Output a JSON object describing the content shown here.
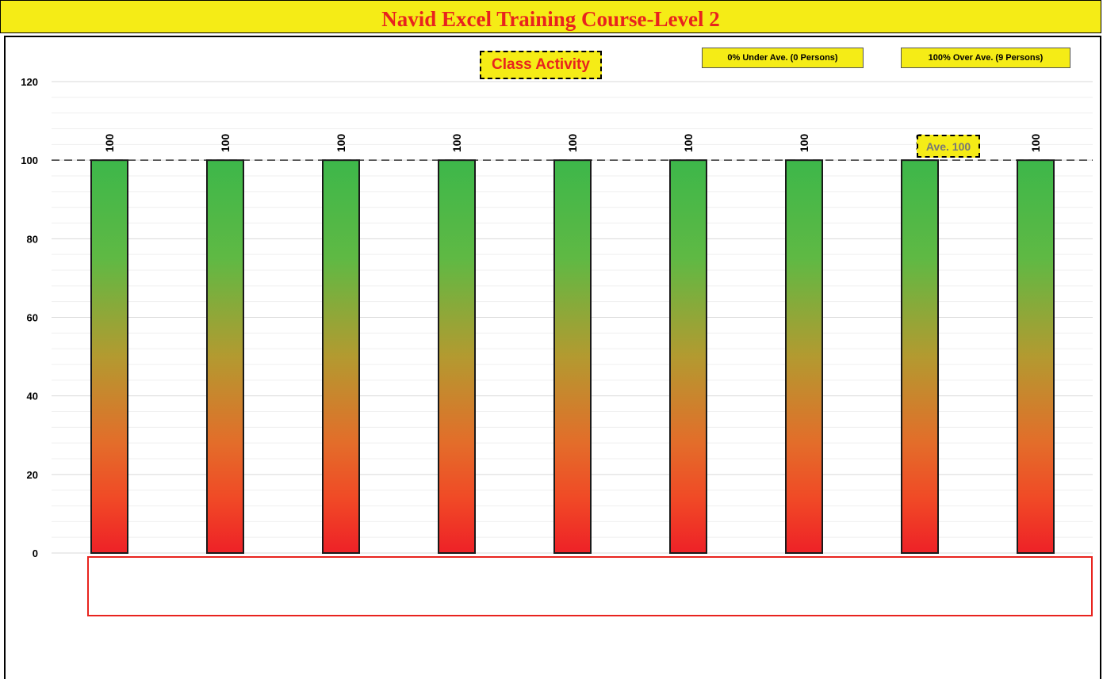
{
  "header": {
    "title": "Navid Excel Training Course-Level 2"
  },
  "badges": {
    "under": "0% Under Ave. (0 Persons)",
    "over": "100% Over Ave. (9 Persons)"
  },
  "colors": {
    "banner": "#f5ec16",
    "title_text": "#e8231e",
    "bar_top": "#3db74a",
    "bar_bottom": "#ee2127"
  },
  "chart_data": {
    "type": "bar",
    "title": "Class Activity",
    "categories": [
      "",
      "",
      "",
      "",
      "",
      "",
      "",
      "",
      ""
    ],
    "values": [
      100,
      100,
      100,
      100,
      100,
      100,
      100,
      100,
      100
    ],
    "data_labels": [
      "100",
      "100",
      "100",
      "100",
      "100",
      "100",
      "100",
      "100",
      "100"
    ],
    "average": 100,
    "average_label": "Ave. 100",
    "ylim": [
      0,
      120
    ],
    "yticks": [
      "0",
      "20",
      "40",
      "60",
      "80",
      "100",
      "120"
    ],
    "grid": true,
    "bar_fill": "vertical gradient green to red"
  }
}
